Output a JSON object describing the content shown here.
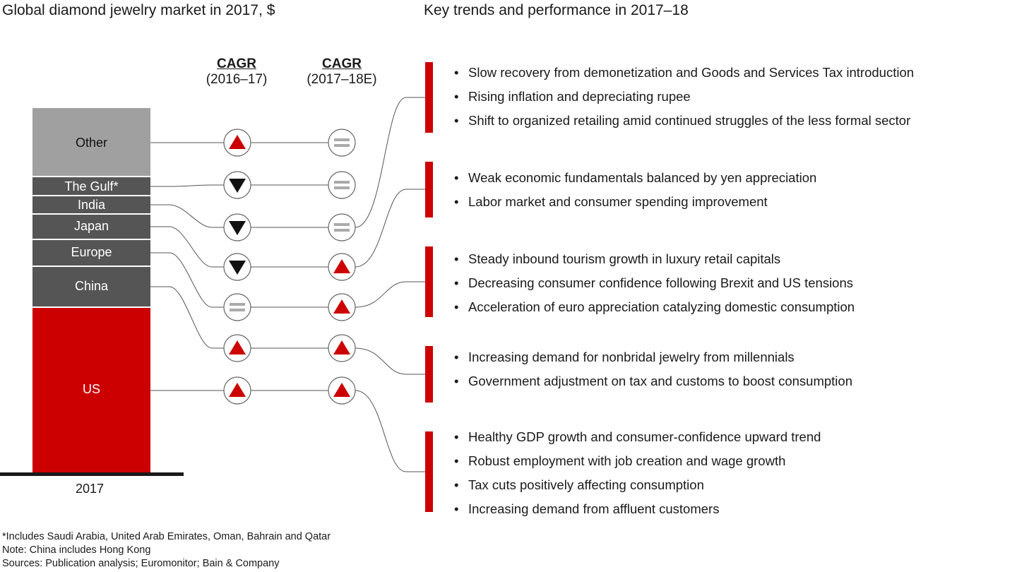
{
  "left_title": "Global diamond jewelry market in 2017, $",
  "right_title": "Key trends and performance in 2017–18",
  "cagr_headers": [
    {
      "label": "CAGR",
      "period": "(2016–17)"
    },
    {
      "label": "CAGR",
      "period": "(2017–18E)"
    }
  ],
  "colors": {
    "us": "#cc0000",
    "dark": "#555555",
    "other": "#a0a0a0",
    "accent": "#cc0000",
    "equal_icon": "#aaaaaa"
  },
  "chart_data": {
    "type": "bar",
    "categories": [
      "2017"
    ],
    "stacked_order_bottom_to_top": [
      "US",
      "China",
      "Europe",
      "Japan",
      "India",
      "The Gulf*",
      "Other"
    ],
    "segments": [
      {
        "name": "Other",
        "cagr_2016_17": "up",
        "cagr_2017_18E": "flat"
      },
      {
        "name": "The Gulf*",
        "cagr_2016_17": "down",
        "cagr_2017_18E": "flat"
      },
      {
        "name": "India",
        "cagr_2016_17": "down",
        "cagr_2017_18E": "flat"
      },
      {
        "name": "Japan",
        "cagr_2016_17": "down",
        "cagr_2017_18E": "up"
      },
      {
        "name": "Europe",
        "cagr_2016_17": "flat",
        "cagr_2017_18E": "up"
      },
      {
        "name": "China",
        "cagr_2016_17": "up",
        "cagr_2017_18E": "up"
      },
      {
        "name": "US",
        "cagr_2016_17": "up",
        "cagr_2017_18E": "up"
      }
    ],
    "xlabel": "2017"
  },
  "trend_groups": [
    {
      "market": "India",
      "bullets": [
        "Slow recovery from demonetization and Goods and Services Tax introduction",
        "Rising inflation and depreciating rupee",
        "Shift to organized retailing amid continued struggles of the less formal sector"
      ]
    },
    {
      "market": "Japan",
      "bullets": [
        "Weak economic fundamentals balanced by yen appreciation",
        "Labor market and consumer spending improvement"
      ]
    },
    {
      "market": "Europe",
      "bullets": [
        "Steady inbound tourism growth in luxury retail capitals",
        "Decreasing consumer confidence following Brexit and US tensions",
        "Acceleration of euro appreciation catalyzing domestic consumption"
      ]
    },
    {
      "market": "China",
      "bullets": [
        "Increasing demand for nonbridal jewelry from millennials",
        "Government adjustment on tax and customs to boost consumption"
      ]
    },
    {
      "market": "US",
      "bullets": [
        "Healthy GDP growth and consumer-confidence upward trend",
        "Robust employment with job creation and wage growth",
        "Tax cuts positively affecting consumption",
        "Increasing demand from affluent customers"
      ]
    }
  ],
  "bullet_char": "•",
  "notes": [
    "*Includes Saudi Arabia, United Arab Emirates, Oman, Bahrain and Qatar",
    "Note: China includes Hong Kong",
    "Sources: Publication analysis; Euromonitor; Bain & Company"
  ]
}
